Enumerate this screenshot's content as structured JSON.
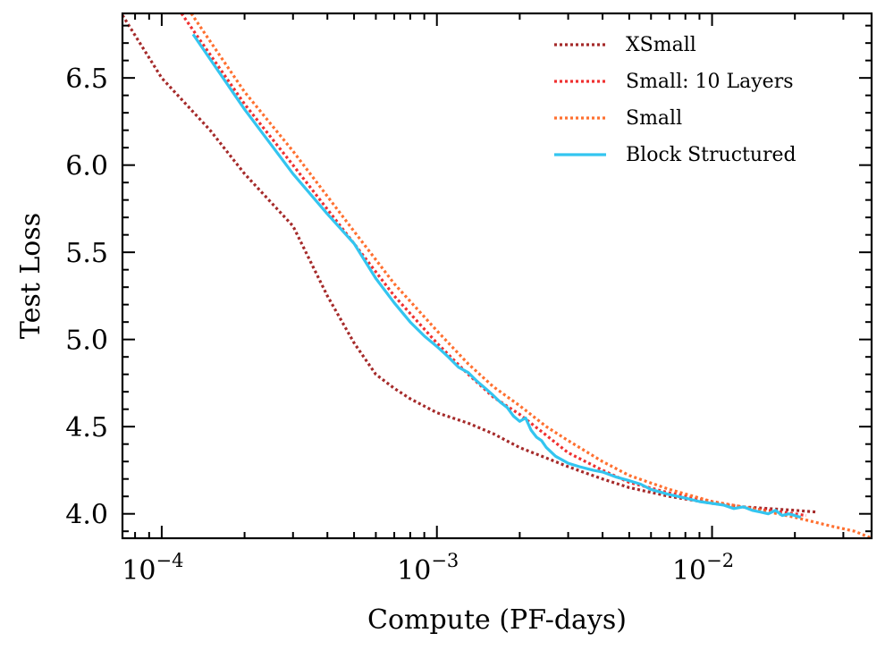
{
  "chart_data": {
    "type": "line",
    "xscale": "log",
    "xlabel": "Compute (PF-days)",
    "ylabel": "Test Loss",
    "xlim": [
      7.2e-05,
      0.038
    ],
    "ylim": [
      3.86,
      6.87
    ],
    "xticks": [
      {
        "value": 0.0001,
        "base": "10",
        "exp": "−4"
      },
      {
        "value": 0.001,
        "base": "10",
        "exp": "−3"
      },
      {
        "value": 0.01,
        "base": "10",
        "exp": "−2"
      }
    ],
    "yticks": [
      {
        "value": 4.0,
        "label": "4.0"
      },
      {
        "value": 4.5,
        "label": "4.5"
      },
      {
        "value": 5.0,
        "label": "5.0"
      },
      {
        "value": 5.5,
        "label": "5.5"
      },
      {
        "value": 6.0,
        "label": "6.0"
      },
      {
        "value": 6.5,
        "label": "6.5"
      }
    ],
    "legend_position": "top-right",
    "series": [
      {
        "name": "XSmall",
        "color": "#a52a2a",
        "style": "dotted",
        "x": [
          7.2e-05,
          0.0001,
          0.00015,
          0.0002,
          0.0003,
          0.0004,
          0.0005,
          0.0006,
          0.0007,
          0.0008,
          0.001,
          0.0013,
          0.0016,
          0.002,
          0.0025,
          0.003,
          0.004,
          0.005,
          0.007,
          0.01,
          0.013,
          0.016,
          0.02,
          0.024
        ],
        "y": [
          6.86,
          6.5,
          6.2,
          5.95,
          5.65,
          5.25,
          4.98,
          4.8,
          4.72,
          4.66,
          4.58,
          4.52,
          4.46,
          4.38,
          4.32,
          4.27,
          4.2,
          4.15,
          4.1,
          4.06,
          4.04,
          4.03,
          4.02,
          4.01
        ]
      },
      {
        "name": "Small: 10 Layers",
        "color": "#f03030",
        "style": "dotted",
        "x": [
          0.000118,
          0.0002,
          0.0003,
          0.0005,
          0.0007,
          0.001,
          0.0013,
          0.0016,
          0.002,
          0.0025,
          0.003,
          0.004,
          0.005,
          0.007,
          0.01,
          0.014,
          0.018,
          0.022
        ],
        "y": [
          6.87,
          6.35,
          6.0,
          5.55,
          5.25,
          4.98,
          4.8,
          4.67,
          4.57,
          4.45,
          4.35,
          4.25,
          4.18,
          4.12,
          4.07,
          4.03,
          4.01,
          3.99
        ]
      },
      {
        "name": "Small",
        "color": "#ff7030",
        "style": "dotted",
        "x": [
          0.000128,
          0.0002,
          0.0003,
          0.0005,
          0.0007,
          0.001,
          0.0013,
          0.0016,
          0.002,
          0.0025,
          0.003,
          0.004,
          0.005,
          0.007,
          0.01,
          0.014,
          0.02,
          0.027,
          0.033,
          0.038
        ],
        "y": [
          6.87,
          6.42,
          6.08,
          5.62,
          5.32,
          5.05,
          4.86,
          4.73,
          4.62,
          4.5,
          4.42,
          4.3,
          4.22,
          4.14,
          4.07,
          4.03,
          3.98,
          3.93,
          3.9,
          3.86
        ]
      },
      {
        "name": "Block Structured",
        "color": "#33c5f0",
        "style": "solid",
        "x": [
          0.00013,
          0.0002,
          0.0003,
          0.0004,
          0.0005,
          0.0006,
          0.0007,
          0.0008,
          0.0009,
          0.001,
          0.0011,
          0.0012,
          0.0013,
          0.0014,
          0.0015,
          0.0016,
          0.0017,
          0.0018,
          0.0019,
          0.002,
          0.0021,
          0.0022,
          0.0023,
          0.0024,
          0.0025,
          0.0027,
          0.003,
          0.0033,
          0.0037,
          0.004,
          0.0045,
          0.005,
          0.0055,
          0.006,
          0.007,
          0.008,
          0.009,
          0.01,
          0.011,
          0.012,
          0.013,
          0.014,
          0.015,
          0.016,
          0.017,
          0.018,
          0.019,
          0.02,
          0.021
        ],
        "y": [
          6.75,
          6.32,
          5.95,
          5.72,
          5.55,
          5.35,
          5.21,
          5.1,
          5.02,
          4.96,
          4.9,
          4.84,
          4.81,
          4.76,
          4.72,
          4.68,
          4.64,
          4.61,
          4.56,
          4.53,
          4.55,
          4.48,
          4.44,
          4.42,
          4.38,
          4.33,
          4.29,
          4.27,
          4.25,
          4.24,
          4.21,
          4.19,
          4.17,
          4.14,
          4.11,
          4.09,
          4.07,
          4.06,
          4.05,
          4.03,
          4.04,
          4.02,
          4.01,
          4.0,
          4.02,
          3.99,
          4.0,
          3.99,
          3.98
        ]
      }
    ]
  }
}
